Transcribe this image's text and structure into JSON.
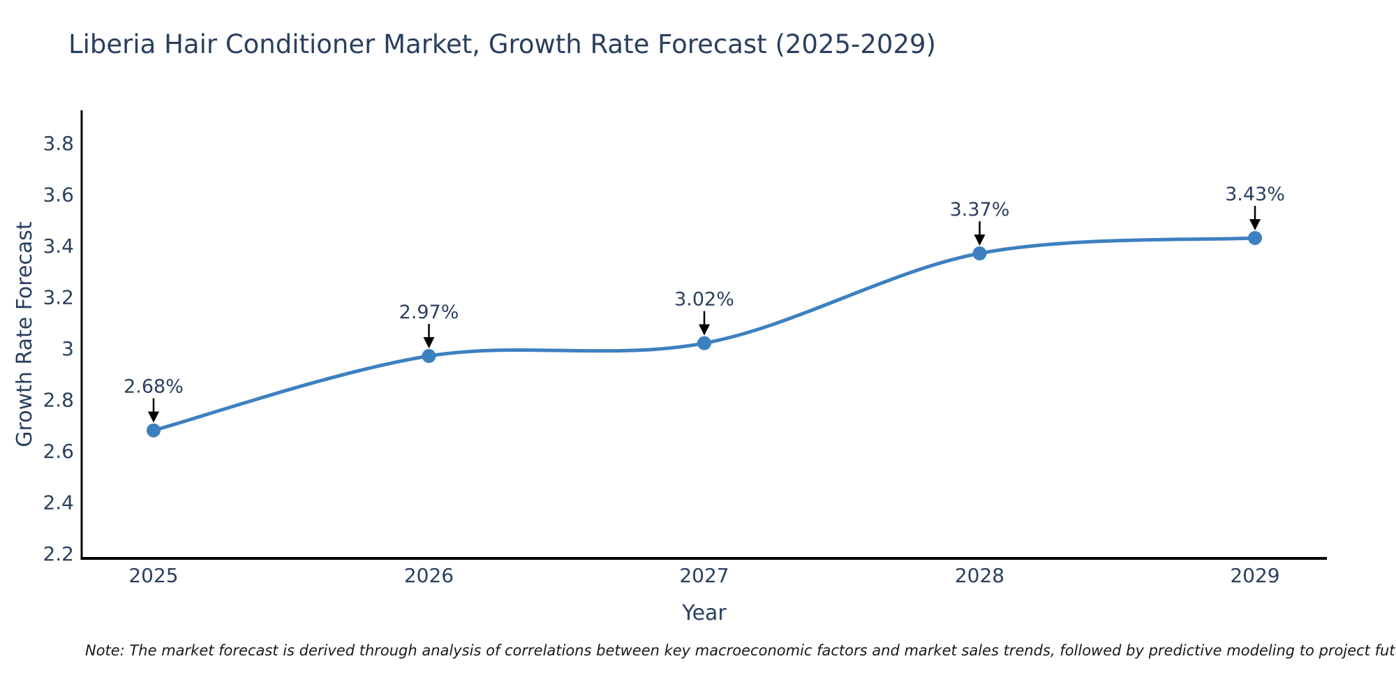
{
  "page": {
    "title": "Liberia Hair Conditioner Market, Growth Rate Forecast (2025-2029)",
    "note": "Note: The market forecast is derived through analysis of correlations between key macroeconomic factors and market sales trends, followed by predictive modeling to project future sales"
  },
  "chart_data": {
    "type": "line",
    "title": "Liberia Hair Conditioner Market, Growth Rate Forecast (2025-2029)",
    "xlabel": "Year",
    "ylabel": "Growth Rate Forecast",
    "categories": [
      "2025",
      "2026",
      "2027",
      "2028",
      "2029"
    ],
    "series": [
      {
        "name": "Growth Rate Forecast",
        "values": [
          2.68,
          2.97,
          3.02,
          3.37,
          3.43
        ]
      }
    ],
    "point_labels": [
      "2.68%",
      "2.97%",
      "3.02%",
      "3.37%",
      "3.43%"
    ],
    "ylim": [
      2.2,
      3.8
    ],
    "yticks": [
      2.2,
      2.4,
      2.6,
      2.8,
      3.0,
      3.2,
      3.4,
      3.6,
      3.8
    ],
    "ytick_labels": [
      "2.2",
      "2.4",
      "2.6",
      "2.8",
      "3",
      "3.2",
      "3.4",
      "3.6",
      "3.8"
    ],
    "line_shape": "spline",
    "grid": false,
    "legend_position": "none",
    "annotation_style": "arrow-down-to-point",
    "colors": {
      "line": "#3d80c0",
      "marker": "#3d80c0",
      "arrow": "#000000",
      "axis_line": "#000000",
      "text": "#2a3f5f",
      "note": "#191919",
      "background": "#ffffff"
    }
  }
}
